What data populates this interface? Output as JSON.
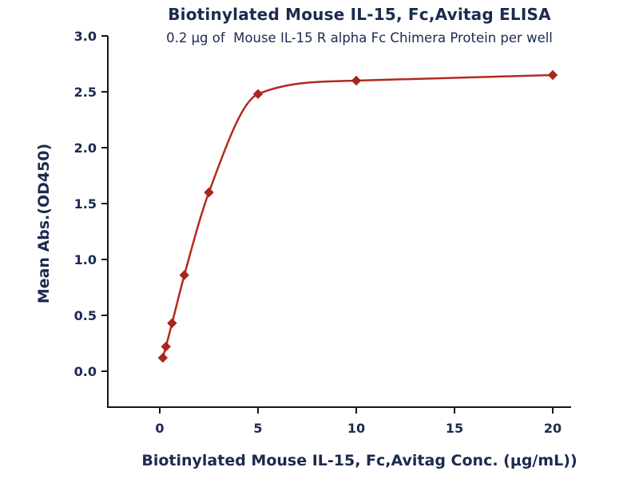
{
  "chart_data": {
    "type": "scatter",
    "title": "Biotinylated Mouse IL-15, Fc,Avitag ELISA",
    "subtitle": "0.2 μg of  Mouse IL-15 R alpha Fc Chimera Protein per well",
    "xlabel": "Biotinylated Mouse IL-15, Fc,Avitag Conc. (μg/mL))",
    "ylabel": "Mean Abs.(OD450)",
    "x": [
      0.156,
      0.313,
      0.625,
      1.25,
      2.5,
      5,
      10,
      20
    ],
    "y": [
      0.12,
      0.22,
      0.43,
      0.86,
      1.6,
      2.48,
      2.6,
      2.65
    ],
    "xticks": [
      0,
      5,
      10,
      15,
      20
    ],
    "yticks": [
      "0.0",
      "0.5",
      "1.0",
      "1.5",
      "2.0",
      "2.5",
      "3.0"
    ],
    "xlim": [
      -2.6,
      20.9
    ],
    "ylim": [
      -0.32,
      3.0
    ],
    "grid": false,
    "legend": "none",
    "marker": "diamond",
    "line_color": "#b22a20",
    "marker_color": "#a8261d",
    "axis_color": "#161616",
    "text_color": "#1b2a4e",
    "fit_note": "sigmoidal 4PL-style curve through points"
  }
}
